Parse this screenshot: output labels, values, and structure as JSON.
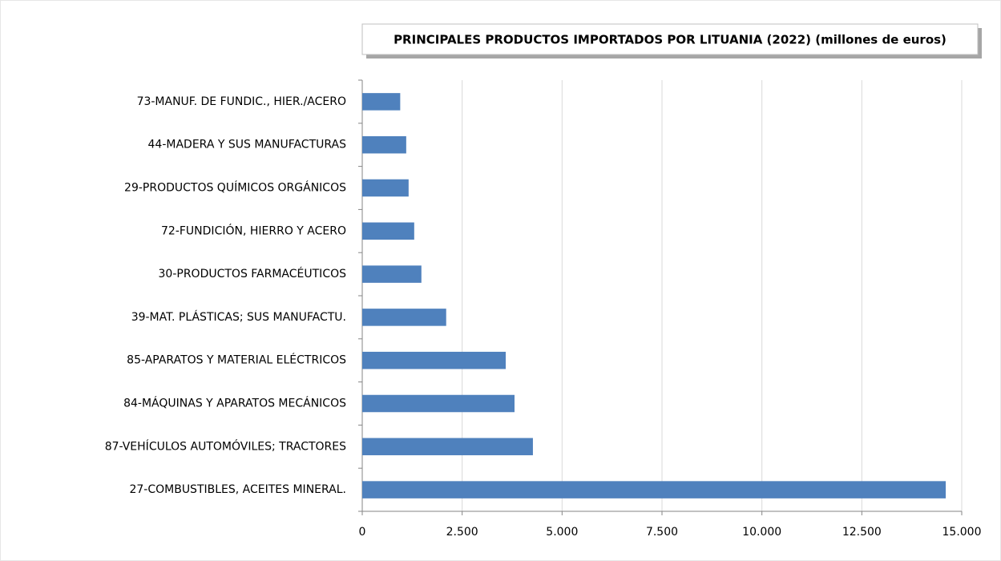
{
  "chart_data": {
    "type": "bar",
    "orientation": "horizontal",
    "title": "PRINCIPALES PRODUCTOS IMPORTADOS POR LITUANIA (2022) (millones de euros)",
    "categories": [
      "73-MANUF. DE FUNDIC., HIER./ACERO",
      "44-MADERA Y SUS MANUFACTURAS",
      "29-PRODUCTOS QUÍMICOS ORGÁNICOS",
      "72-FUNDICIÓN, HIERRO Y ACERO",
      "30-PRODUCTOS FARMACÉUTICOS",
      "39-MAT. PLÁSTICAS; SUS MANUFACTU.",
      "85-APARATOS Y MATERIAL ELÉCTRICOS",
      "84-MÁQUINAS Y APARATOS MECÁNICOS",
      "87-VEHÍCULOS AUTOMÓVILES; TRACTORES",
      "27-COMBUSTIBLES, ACEITES MINERAL."
    ],
    "values": [
      950,
      1100,
      1160,
      1300,
      1480,
      2100,
      3590,
      3810,
      4270,
      14600
    ],
    "color": "#4f81bd",
    "xlim": [
      0,
      15000
    ],
    "xticks": [
      0,
      {
        "value": 2500,
        "label": "2.500"
      },
      {
        "value": 5000,
        "label": "5.000"
      },
      {
        "value": 7500,
        "label": "7.500"
      },
      {
        "value": 10000,
        "label": "10.000"
      },
      {
        "value": 12500,
        "label": "12.500"
      },
      {
        "value": 15000,
        "label": "15.000"
      }
    ],
    "grid": true
  }
}
